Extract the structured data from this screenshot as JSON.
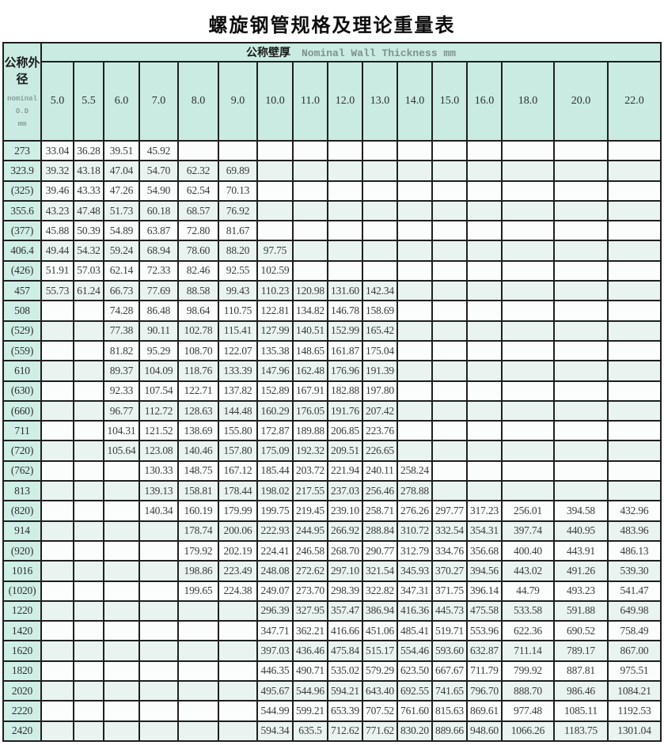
{
  "title": "螺旋钢管规格及理论重量表",
  "colors": {
    "header_bg": "#c9ebe2",
    "label_col_bg": "#cfeee6",
    "row_bg": "#fafdfc",
    "row_alt_bg": "#e9f4f0",
    "border": "#1f1f1f"
  },
  "table": {
    "corner": {
      "line1": "公称外",
      "line2": "径",
      "sub1": "nominal",
      "sub2": "O.D",
      "sub3": "mm"
    },
    "wall_header": {
      "cn": "公称壁厚",
      "en": "Nominal Wall Thickness mm"
    },
    "thickness_mm": [
      "5.0",
      "5.5",
      "6.0",
      "7.0",
      "8.0",
      "9.0",
      "10.0",
      "11.0",
      "12.0",
      "13.0",
      "14.0",
      "15.0",
      "16.0",
      "18.0",
      "20.0",
      "22.0"
    ],
    "rows": [
      {
        "od": "273",
        "weights": [
          "33.04",
          "36.28",
          "39.51",
          "45.92",
          "",
          "",
          "",
          "",
          "",
          "",
          "",
          "",
          "",
          "",
          "",
          ""
        ]
      },
      {
        "od": "323.9",
        "weights": [
          "39.32",
          "43.18",
          "47.04",
          "54.70",
          "62.32",
          "69.89",
          "",
          "",
          "",
          "",
          "",
          "",
          "",
          "",
          "",
          ""
        ]
      },
      {
        "od": "(325)",
        "weights": [
          "39.46",
          "43.33",
          "47.26",
          "54.90",
          "62.54",
          "70.13",
          "",
          "",
          "",
          "",
          "",
          "",
          "",
          "",
          "",
          ""
        ]
      },
      {
        "od": "355.6",
        "weights": [
          "43.23",
          "47.48",
          "51.73",
          "60.18",
          "68.57",
          "76.92",
          "",
          "",
          "",
          "",
          "",
          "",
          "",
          "",
          "",
          ""
        ]
      },
      {
        "od": "(377)",
        "weights": [
          "45.88",
          "50.39",
          "54.89",
          "63.87",
          "72.80",
          "81.67",
          "",
          "",
          "",
          "",
          "",
          "",
          "",
          "",
          "",
          ""
        ]
      },
      {
        "od": "406.4",
        "weights": [
          "49.44",
          "54.32",
          "59.24",
          "68.94",
          "78.60",
          "88.20",
          "97.75",
          "",
          "",
          "",
          "",
          "",
          "",
          "",
          "",
          ""
        ]
      },
      {
        "od": "(426)",
        "weights": [
          "51.91",
          "57.03",
          "62.14",
          "72.33",
          "82.46",
          "92.55",
          "102.59",
          "",
          "",
          "",
          "",
          "",
          "",
          "",
          "",
          ""
        ]
      },
      {
        "od": "457",
        "weights": [
          "55.73",
          "61.24",
          "66.73",
          "77.69",
          "88.58",
          "99.43",
          "110.23",
          "120.98",
          "131.60",
          "142.34",
          "",
          "",
          "",
          "",
          "",
          ""
        ]
      },
      {
        "od": "508",
        "weights": [
          "",
          "",
          "74.28",
          "86.48",
          "98.64",
          "110.75",
          "122.81",
          "134.82",
          "146.78",
          "158.69",
          "",
          "",
          "",
          "",
          "",
          ""
        ]
      },
      {
        "od": "(529)",
        "weights": [
          "",
          "",
          "77.38",
          "90.11",
          "102.78",
          "115.41",
          "127.99",
          "140.51",
          "152.99",
          "165.42",
          "",
          "",
          "",
          "",
          "",
          ""
        ]
      },
      {
        "od": "(559)",
        "weights": [
          "",
          "",
          "81.82",
          "95.29",
          "108.70",
          "122.07",
          "135.38",
          "148.65",
          "161.87",
          "175.04",
          "",
          "",
          "",
          "",
          "",
          ""
        ]
      },
      {
        "od": "610",
        "weights": [
          "",
          "",
          "89.37",
          "104.09",
          "118.76",
          "133.39",
          "147.96",
          "162.48",
          "176.96",
          "191.39",
          "",
          "",
          "",
          "",
          "",
          ""
        ]
      },
      {
        "od": "(630)",
        "weights": [
          "",
          "",
          "92.33",
          "107.54",
          "122.71",
          "137.82",
          "152.89",
          "167.91",
          "182.88",
          "197.80",
          "",
          "",
          "",
          "",
          "",
          ""
        ]
      },
      {
        "od": "(660)",
        "weights": [
          "",
          "",
          "96.77",
          "112.72",
          "128.63",
          "144.48",
          "160.29",
          "176.05",
          "191.76",
          "207.42",
          "",
          "",
          "",
          "",
          "",
          ""
        ]
      },
      {
        "od": "711",
        "weights": [
          "",
          "",
          "104.31",
          "121.52",
          "138.69",
          "155.80",
          "172.87",
          "189.88",
          "206.85",
          "223.76",
          "",
          "",
          "",
          "",
          "",
          ""
        ]
      },
      {
        "od": "(720)",
        "weights": [
          "",
          "",
          "105.64",
          "123.08",
          "140.46",
          "157.80",
          "175.09",
          "192.32",
          "209.51",
          "226.65",
          "",
          "",
          "",
          "",
          "",
          ""
        ]
      },
      {
        "od": "(762)",
        "weights": [
          "",
          "",
          "",
          "130.33",
          "148.75",
          "167.12",
          "185.44",
          "203.72",
          "221.94",
          "240.11",
          "258.24",
          "",
          "",
          "",
          "",
          ""
        ]
      },
      {
        "od": "813",
        "weights": [
          "",
          "",
          "",
          "139.13",
          "158.81",
          "178.44",
          "198.02",
          "217.55",
          "237.03",
          "256.46",
          "278.88",
          "",
          "",
          "",
          "",
          ""
        ]
      },
      {
        "od": "(820)",
        "weights": [
          "",
          "",
          "",
          "140.34",
          "160.19",
          "179.99",
          "199.75",
          "219.45",
          "239.10",
          "258.71",
          "276.26",
          "297.77",
          "317.23",
          "256.01",
          "394.58",
          "432.96"
        ]
      },
      {
        "od": "914",
        "weights": [
          "",
          "",
          "",
          "",
          "178.74",
          "200.06",
          "222.93",
          "244.95",
          "266.92",
          "288.84",
          "310.72",
          "332.54",
          "354.31",
          "397.74",
          "440.95",
          "483.96"
        ]
      },
      {
        "od": "(920)",
        "weights": [
          "",
          "",
          "",
          "",
          "179.92",
          "202.19",
          "224.41",
          "246.58",
          "268.70",
          "290.77",
          "312.79",
          "334.76",
          "356.68",
          "400.40",
          "443.91",
          "486.13"
        ]
      },
      {
        "od": "1016",
        "weights": [
          "",
          "",
          "",
          "",
          "198.86",
          "223.49",
          "248.08",
          "272.62",
          "297.10",
          "321.54",
          "345.93",
          "370.27",
          "394.56",
          "443.02",
          "491.26",
          "539.30"
        ]
      },
      {
        "od": "(1020)",
        "weights": [
          "",
          "",
          "",
          "",
          "199.65",
          "224.38",
          "249.07",
          "273.70",
          "298.39",
          "322.82",
          "347.31",
          "371.75",
          "396.14",
          "44.79",
          "493.23",
          "541.47"
        ]
      },
      {
        "od": "1220",
        "weights": [
          "",
          "",
          "",
          "",
          "",
          "",
          "296.39",
          "327.95",
          "357.47",
          "386.94",
          "416.36",
          "445.73",
          "475.58",
          "533.58",
          "591.88",
          "649.98"
        ]
      },
      {
        "od": "1420",
        "weights": [
          "",
          "",
          "",
          "",
          "",
          "",
          "347.71",
          "362.21",
          "416.66",
          "451.06",
          "485.41",
          "519.71",
          "553.96",
          "622.36",
          "690.52",
          "758.49"
        ]
      },
      {
        "od": "1620",
        "weights": [
          "",
          "",
          "",
          "",
          "",
          "",
          "397.03",
          "436.46",
          "475.84",
          "515.17",
          "554.46",
          "593.60",
          "632.87",
          "711.14",
          "789.17",
          "867.00"
        ]
      },
      {
        "od": "1820",
        "weights": [
          "",
          "",
          "",
          "",
          "",
          "",
          "446.35",
          "490.71",
          "535.02",
          "579.29",
          "623.50",
          "667.67",
          "711.79",
          "799.92",
          "887.81",
          "975.51"
        ]
      },
      {
        "od": "2020",
        "weights": [
          "",
          "",
          "",
          "",
          "",
          "",
          "495.67",
          "544.96",
          "594.21",
          "643.40",
          "692.55",
          "741.65",
          "796.70",
          "888.70",
          "986.46",
          "1084.21"
        ]
      },
      {
        "od": "2220",
        "weights": [
          "",
          "",
          "",
          "",
          "",
          "",
          "544.99",
          "599.21",
          "653.39",
          "707.52",
          "761.60",
          "815.63",
          "869.61",
          "977.48",
          "1085.11",
          "1192.53"
        ]
      },
      {
        "od": "2420",
        "weights": [
          "",
          "",
          "",
          "",
          "",
          "",
          "594.34",
          "635.5",
          "712.62",
          "771.62",
          "830.20",
          "889.66",
          "948.60",
          "1066.26",
          "1183.75",
          "1301.04"
        ]
      }
    ]
  }
}
